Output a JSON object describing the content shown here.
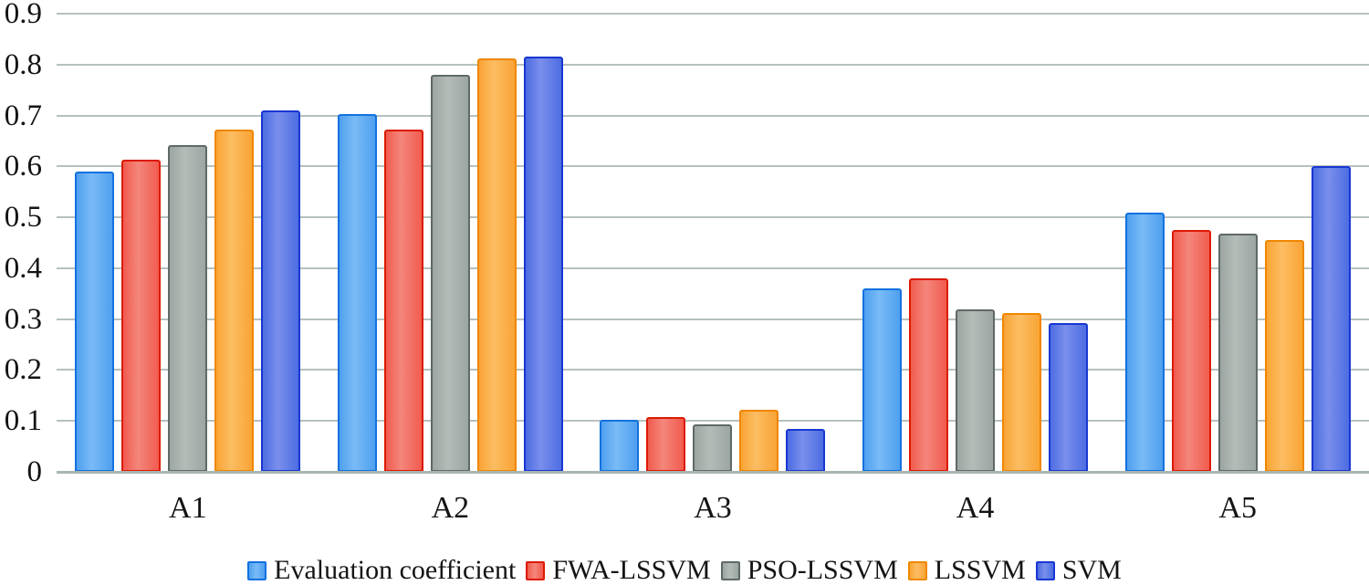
{
  "chart_data": {
    "type": "bar",
    "title": "",
    "xlabel": "",
    "ylabel": "",
    "categories": [
      "A1",
      "A2",
      "A3",
      "A4",
      "A5"
    ],
    "series": [
      {
        "name": "Evaluation coefficient",
        "values": [
          0.59,
          0.703,
          0.102,
          0.36,
          0.51
        ],
        "fill": "#4fa0ef",
        "fill_light": "#79bbf6",
        "border": "#1371e0"
      },
      {
        "name": "FWA-LSSVM",
        "values": [
          0.613,
          0.672,
          0.107,
          0.38,
          0.475
        ],
        "fill": "#f15b4e",
        "fill_light": "#f4867b",
        "border": "#dc1a02"
      },
      {
        "name": "PSO-LSSVM",
        "values": [
          0.642,
          0.78,
          0.093,
          0.32,
          0.468
        ],
        "fill": "#9ca6a1",
        "fill_light": "#b4bcb8",
        "border": "#5f6965"
      },
      {
        "name": "LSSVM",
        "values": [
          0.672,
          0.813,
          0.122,
          0.312,
          0.456
        ],
        "fill": "#faa435",
        "fill_light": "#fcbd63",
        "border": "#ef8700"
      },
      {
        "name": "SVM",
        "values": [
          0.71,
          0.815,
          0.084,
          0.293,
          0.6
        ],
        "fill": "#4d6de2",
        "fill_light": "#7a8fec",
        "border": "#1837d2"
      }
    ],
    "ylim": [
      0,
      0.9
    ],
    "yticks": [
      0,
      0.1,
      0.2,
      0.3,
      0.4,
      0.5,
      0.6,
      0.7,
      0.8,
      0.9
    ],
    "ytick_labels": [
      "0",
      "0.1",
      "0.2",
      "0.3",
      "0.4",
      "0.5",
      "0.6",
      "0.7",
      "0.8",
      "0.9"
    ],
    "grid": true,
    "legend_position": "bottom"
  },
  "colors": {
    "background": "#ffffff",
    "gridline": "#b6c1bf",
    "axis_line": "#a9b5b2",
    "text": "#141414"
  }
}
